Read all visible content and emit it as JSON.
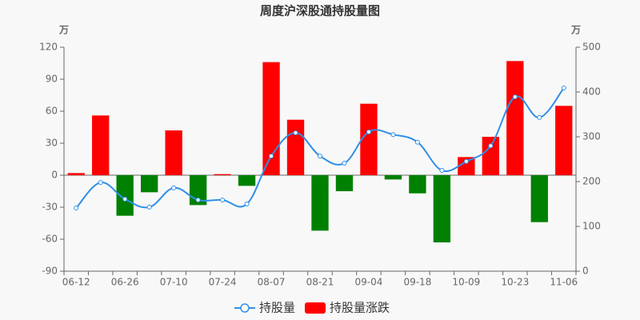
{
  "chart_data": {
    "type": "bar",
    "title": "周度沪深股通持股量图",
    "y_label": "万",
    "y2_label": "万",
    "categories": [
      "06-12",
      null,
      "06-26",
      null,
      "07-10",
      null,
      "07-24",
      null,
      "08-07",
      null,
      "08-21",
      null,
      "09-04",
      null,
      "09-18",
      null,
      "10-09",
      null,
      "10-23",
      null,
      "11-06"
    ],
    "series": [
      {
        "name": "持股量",
        "type": "line",
        "axis": "y2",
        "color": "#2f8fe8",
        "values": [
          141,
          198,
          161,
          143,
          186,
          159,
          159,
          150,
          257,
          309,
          257,
          241,
          311,
          305,
          288,
          225,
          245,
          280,
          389,
          343,
          409
        ]
      },
      {
        "name": "持股量涨跌",
        "type": "bar",
        "color": "#ff0000",
        "negative_color": "#008000",
        "values": [
          2,
          56,
          -38,
          -16,
          42,
          -28,
          1,
          -10,
          106,
          52,
          -52,
          -15,
          67,
          -4,
          -17,
          -63,
          17,
          36,
          107,
          -44,
          65
        ]
      }
    ],
    "ylim": [
      -90,
      120
    ],
    "yticks": [
      -90,
      -60,
      -30,
      0,
      30,
      60,
      90,
      120
    ],
    "y2lim": [
      0,
      500
    ],
    "y2ticks": [
      0,
      100,
      200,
      300,
      400,
      500
    ],
    "legend": "bottom"
  }
}
